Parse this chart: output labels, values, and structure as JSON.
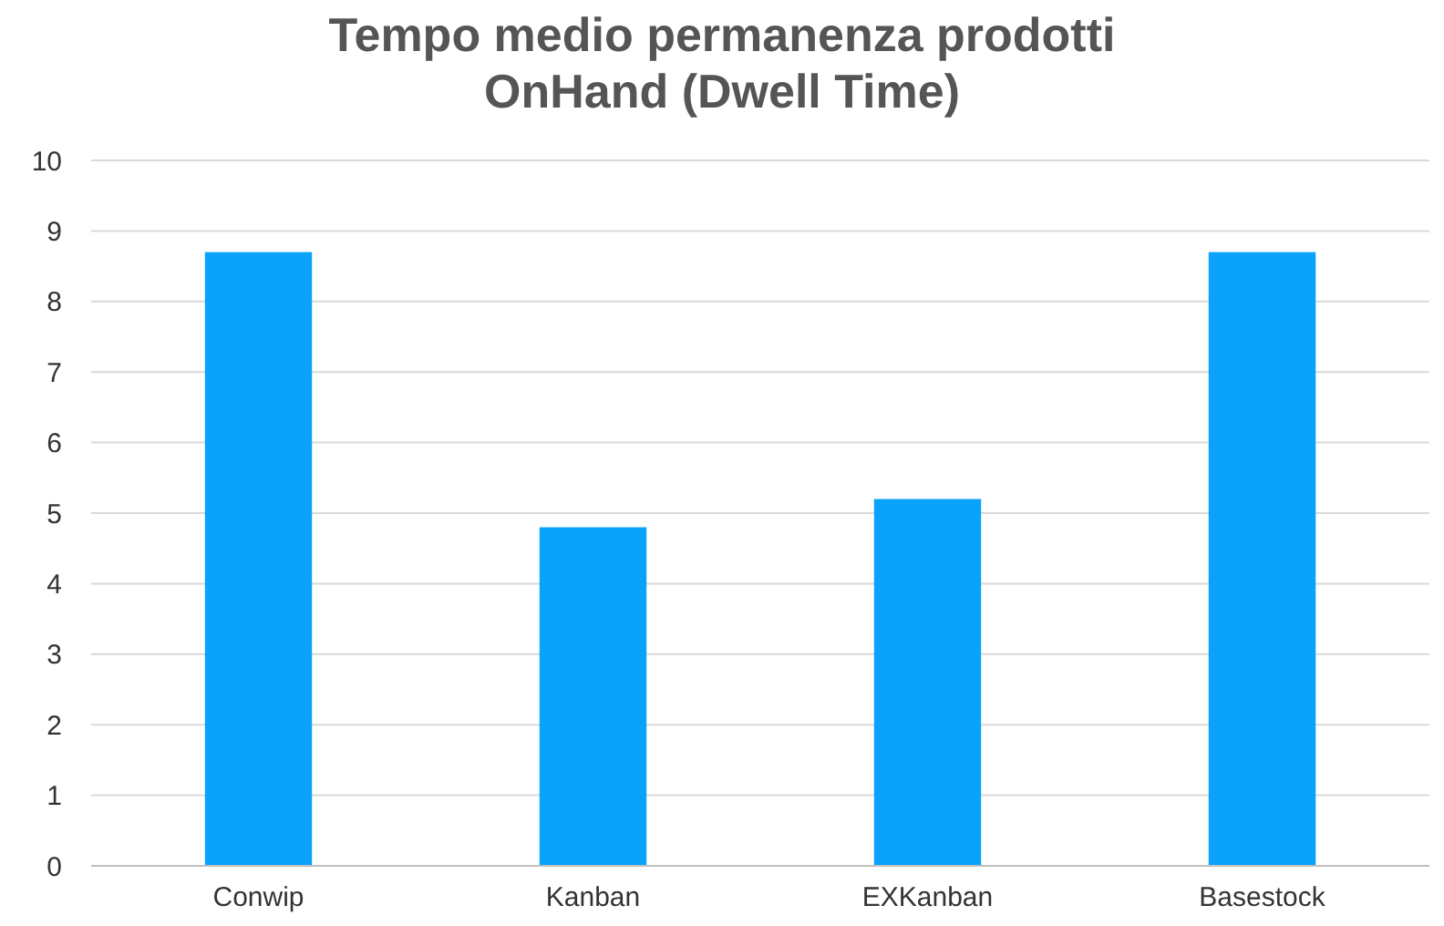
{
  "chart_data": {
    "type": "bar",
    "title": "Tempo medio permanenza prodotti\nOnHand (Dwell Time)",
    "categories": [
      "Conwip",
      "Kanban",
      "EXKanban",
      "Basestock"
    ],
    "values": [
      8.7,
      4.8,
      5.2,
      8.7
    ],
    "color": "#0aa2fb",
    "ylim": [
      0,
      10
    ],
    "yticks": [
      0,
      1,
      2,
      3,
      4,
      5,
      6,
      7,
      8,
      9,
      10
    ],
    "grid": "y"
  }
}
